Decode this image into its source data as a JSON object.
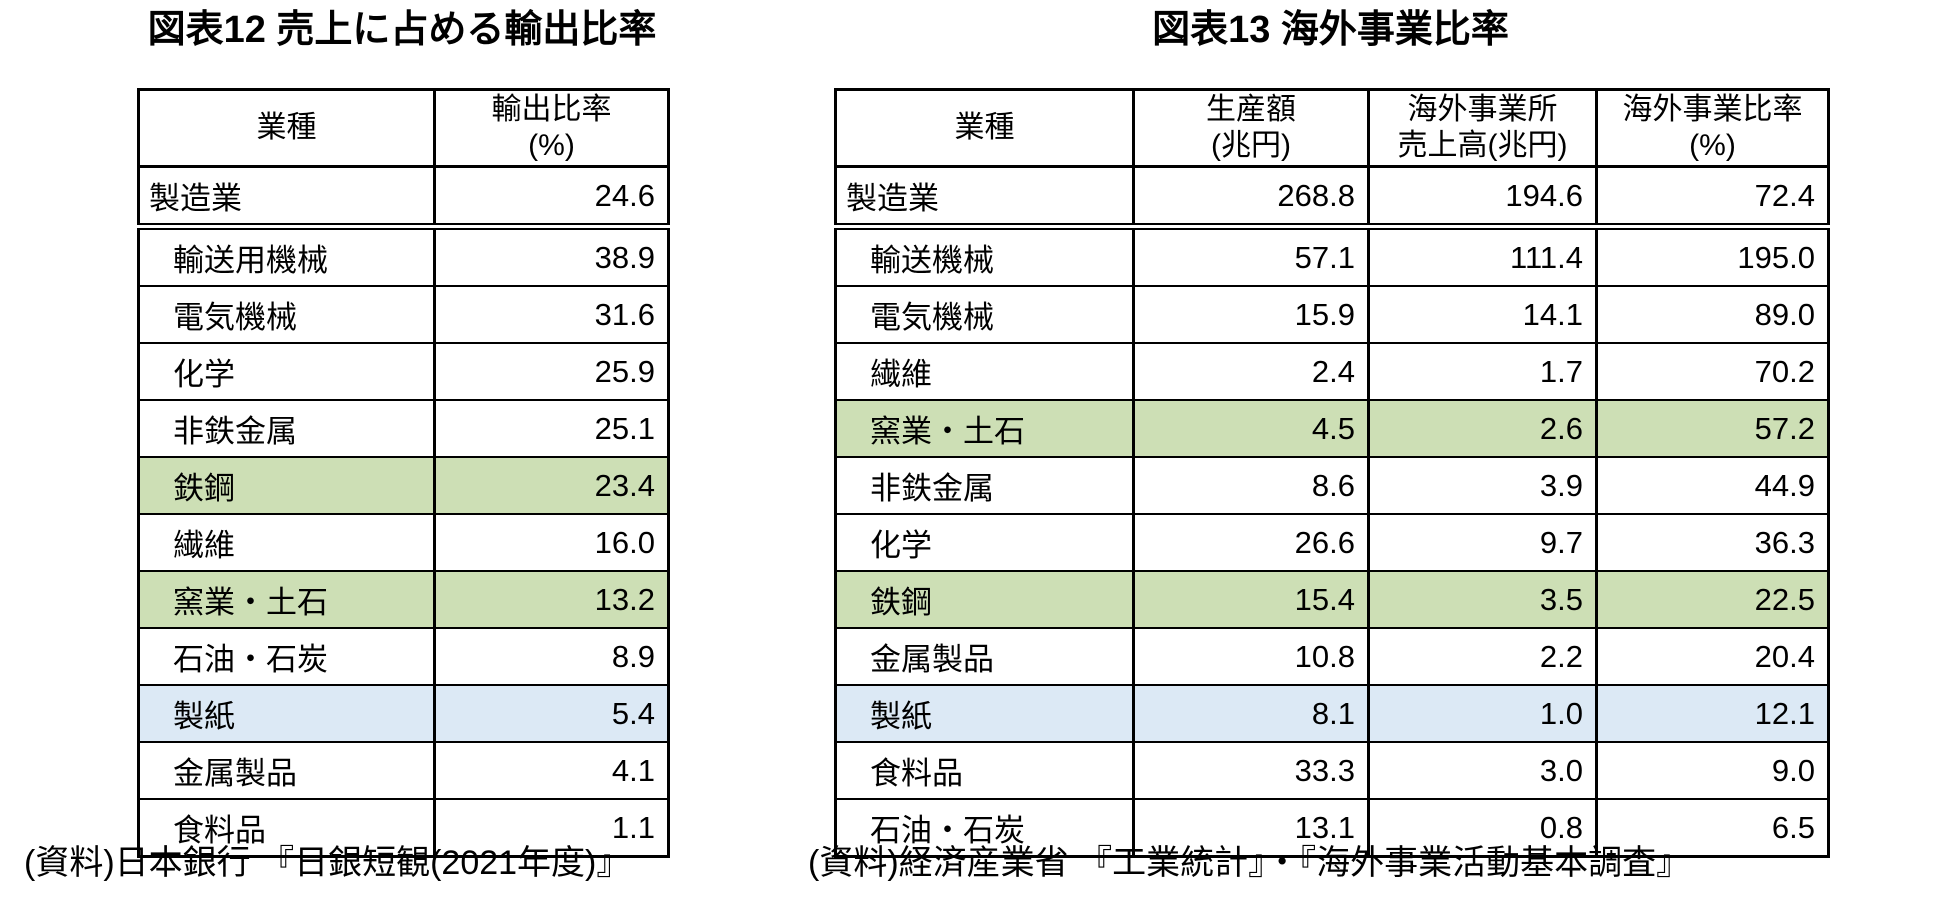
{
  "colors": {
    "background": "#ffffff",
    "text": "#000000",
    "border": "#000000",
    "highlight_green": "#CDDFB5",
    "highlight_blue": "#DCE9F5"
  },
  "chart_data": [
    {
      "type": "table",
      "title": "図表12 売上に占める輸出比率",
      "columns": [
        "業種",
        "輸出比率\n(%)"
      ],
      "rows": [
        {
          "label": "製造業",
          "values": [
            "24.6"
          ],
          "indent": false,
          "total": true,
          "highlight": null
        },
        {
          "label": "輸送用機械",
          "values": [
            "38.9"
          ],
          "indent": true,
          "total": false,
          "highlight": null
        },
        {
          "label": "電気機械",
          "values": [
            "31.6"
          ],
          "indent": true,
          "total": false,
          "highlight": null
        },
        {
          "label": "化学",
          "values": [
            "25.9"
          ],
          "indent": true,
          "total": false,
          "highlight": null
        },
        {
          "label": "非鉄金属",
          "values": [
            "25.1"
          ],
          "indent": true,
          "total": false,
          "highlight": null
        },
        {
          "label": "鉄鋼",
          "values": [
            "23.4"
          ],
          "indent": true,
          "total": false,
          "highlight": "green"
        },
        {
          "label": "繊維",
          "values": [
            "16.0"
          ],
          "indent": true,
          "total": false,
          "highlight": null
        },
        {
          "label": "窯業・土石",
          "values": [
            "13.2"
          ],
          "indent": true,
          "total": false,
          "highlight": "green"
        },
        {
          "label": "石油・石炭",
          "values": [
            "8.9"
          ],
          "indent": true,
          "total": false,
          "highlight": null
        },
        {
          "label": "製紙",
          "values": [
            "5.4"
          ],
          "indent": true,
          "total": false,
          "highlight": "blue"
        },
        {
          "label": "金属製品",
          "values": [
            "4.1"
          ],
          "indent": true,
          "total": false,
          "highlight": null
        },
        {
          "label": "食料品",
          "values": [
            "1.1"
          ],
          "indent": true,
          "total": false,
          "highlight": null
        }
      ],
      "source": "(資料)日本銀行 『日銀短観(2021年度)』"
    },
    {
      "type": "table",
      "title": "図表13 海外事業比率",
      "columns": [
        "業種",
        "生産額\n(兆円)",
        "海外事業所\n売上高(兆円)",
        "海外事業比率\n(%)"
      ],
      "rows": [
        {
          "label": "製造業",
          "values": [
            "268.8",
            "194.6",
            "72.4"
          ],
          "indent": false,
          "total": true,
          "highlight": null
        },
        {
          "label": "輸送機械",
          "values": [
            "57.1",
            "111.4",
            "195.0"
          ],
          "indent": true,
          "total": false,
          "highlight": null
        },
        {
          "label": "電気機械",
          "values": [
            "15.9",
            "14.1",
            "89.0"
          ],
          "indent": true,
          "total": false,
          "highlight": null
        },
        {
          "label": "繊維",
          "values": [
            "2.4",
            "1.7",
            "70.2"
          ],
          "indent": true,
          "total": false,
          "highlight": null
        },
        {
          "label": "窯業・土石",
          "values": [
            "4.5",
            "2.6",
            "57.2"
          ],
          "indent": true,
          "total": false,
          "highlight": "green"
        },
        {
          "label": "非鉄金属",
          "values": [
            "8.6",
            "3.9",
            "44.9"
          ],
          "indent": true,
          "total": false,
          "highlight": null
        },
        {
          "label": "化学",
          "values": [
            "26.6",
            "9.7",
            "36.3"
          ],
          "indent": true,
          "total": false,
          "highlight": null
        },
        {
          "label": "鉄鋼",
          "values": [
            "15.4",
            "3.5",
            "22.5"
          ],
          "indent": true,
          "total": false,
          "highlight": "green"
        },
        {
          "label": "金属製品",
          "values": [
            "10.8",
            "2.2",
            "20.4"
          ],
          "indent": true,
          "total": false,
          "highlight": null
        },
        {
          "label": "製紙",
          "values": [
            "8.1",
            "1.0",
            "12.1"
          ],
          "indent": true,
          "total": false,
          "highlight": "blue"
        },
        {
          "label": "食料品",
          "values": [
            "33.3",
            "3.0",
            "9.0"
          ],
          "indent": true,
          "total": false,
          "highlight": null
        },
        {
          "label": "石油・石炭",
          "values": [
            "13.1",
            "0.8",
            "6.5"
          ],
          "indent": true,
          "total": false,
          "highlight": null
        }
      ],
      "source": "(資料)経済産業省 『工業統計』・『海外事業活動基本調査』"
    }
  ]
}
